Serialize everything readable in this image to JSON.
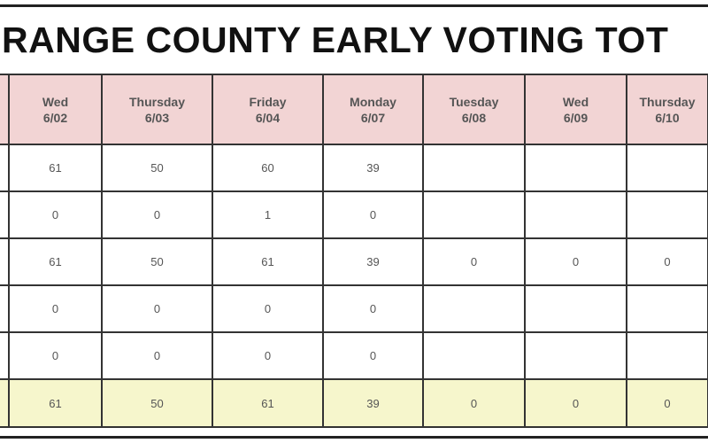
{
  "header": {
    "title": "RANGE COUNTY EARLY VOTING TOT"
  },
  "table": {
    "columns": [
      {
        "day": "Wed",
        "date": "6/02"
      },
      {
        "day": "Thursday",
        "date": "6/03"
      },
      {
        "day": "Friday",
        "date": "6/04"
      },
      {
        "day": "Monday",
        "date": "6/07"
      },
      {
        "day": "Tuesday",
        "date": "6/08"
      },
      {
        "day": "Wed",
        "date": "6/09"
      },
      {
        "day": "Thursday",
        "date": "6/10"
      }
    ],
    "rows": [
      [
        "61",
        "50",
        "60",
        "39",
        null,
        null,
        null
      ],
      [
        "0",
        "0",
        "1",
        "0",
        null,
        null,
        null
      ],
      [
        "61",
        "50",
        "61",
        "39",
        "0",
        "0",
        "0"
      ],
      [
        "0",
        "0",
        "0",
        "0",
        null,
        null,
        null
      ],
      [
        "0",
        "0",
        "0",
        "0",
        null,
        null,
        null
      ],
      [
        "61",
        "50",
        "61",
        "39",
        "0",
        "0",
        "0"
      ]
    ]
  }
}
